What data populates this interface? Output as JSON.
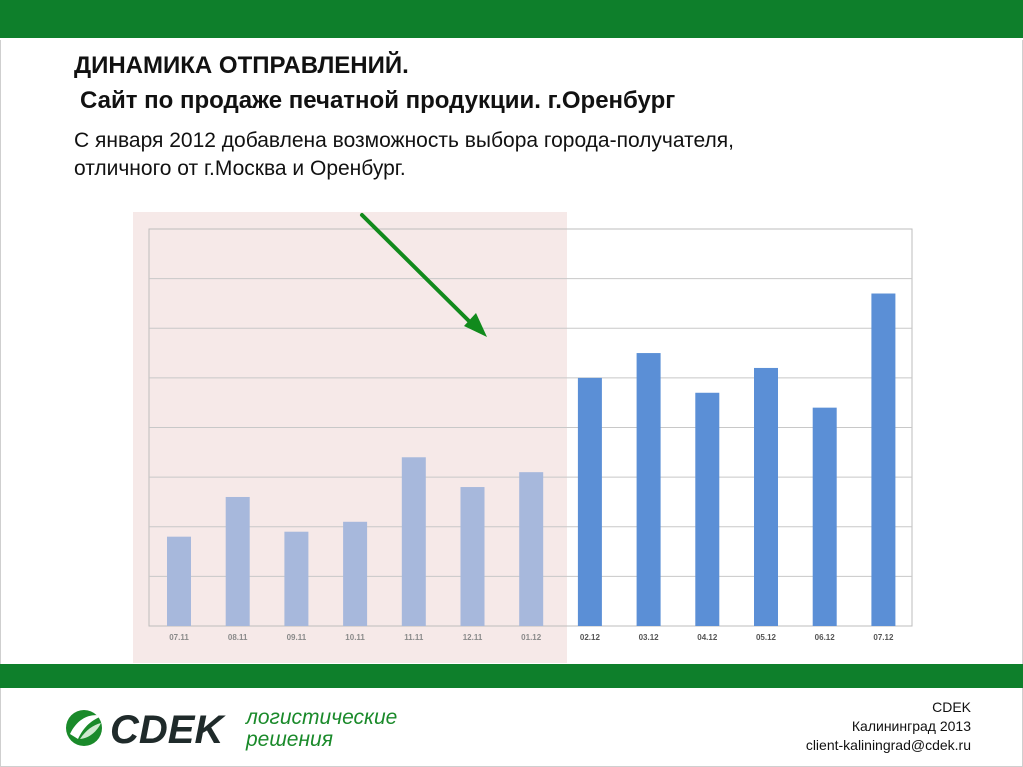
{
  "slide": {
    "title_line1": "ДИНАМИКА  ОТПРАВЛЕНИЙ.",
    "title_line2": "Сайт по продаже печатной продукции. г.Оренбург",
    "subtitle_line1": "С января 2012 добавлена возможность выбора города-получателя,",
    "subtitle_line2": "отличного от г.Москва и Оренбург."
  },
  "colors": {
    "brand_green": "#0e7f2b",
    "bar_before": "#a7b8dc",
    "bar_after": "#5b8fd6",
    "highlight_bg": "#f6e9e8",
    "arrow": "#118a1c"
  },
  "chart_data": {
    "type": "bar",
    "categories": [
      "07.11",
      "08.11",
      "09.11",
      "10.11",
      "11.11",
      "12.11",
      "01.12",
      "02.12",
      "03.12",
      "04.12",
      "05.12",
      "06.12",
      "07.12"
    ],
    "values": [
      1.8,
      2.6,
      1.9,
      2.1,
      3.4,
      2.8,
      3.1,
      5.0,
      5.5,
      4.7,
      5.2,
      4.4,
      6.7
    ],
    "highlighted_before_count": 7,
    "ylim": [
      0,
      8
    ],
    "y_gridlines": 8,
    "title": "",
    "xlabel": "",
    "ylabel": ""
  },
  "footer": {
    "logo_word": "CDEK",
    "logo_tag_line1": "логистические",
    "logo_tag_line2": "решения",
    "company": "CDEK",
    "city_year": "Калининград 2013",
    "email": "client-kaliningrad@cdek.ru"
  }
}
